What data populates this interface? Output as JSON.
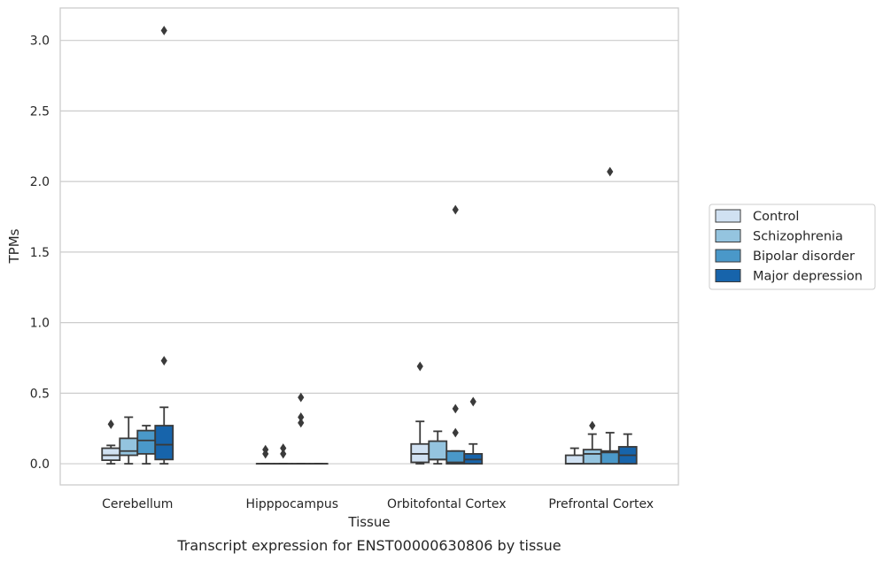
{
  "chart_data": {
    "type": "box",
    "xlabel": "Tissue",
    "ylabel": "TPMs",
    "caption": "Transcript expression for ENST00000630806 by tissue",
    "ylim": [
      -0.15,
      3.23
    ],
    "yticks": [
      0.0,
      0.5,
      1.0,
      1.5,
      2.0,
      2.5,
      3.0
    ],
    "ytick_labels": [
      "0.0",
      "0.5",
      "1.0",
      "1.5",
      "2.0",
      "2.5",
      "3.0"
    ],
    "grid": "horizontal",
    "legend_position": "right",
    "categories": [
      "Cerebellum",
      "Hipppocampus",
      "Orbitofontal Cortex",
      "Prefrontal Cortex"
    ],
    "series": [
      {
        "name": "Control",
        "color": "#d0e1f2",
        "boxes": [
          {
            "whislo": 0.0,
            "q1": 0.025,
            "med": 0.06,
            "q3": 0.11,
            "whishi": 0.13,
            "fliers": [
              0.28
            ]
          },
          {
            "whislo": 0.0,
            "q1": 0.0,
            "med": 0.0,
            "q3": 0.0,
            "whishi": 0.0,
            "fliers": [
              0.07,
              0.1
            ]
          },
          {
            "whislo": 0.0,
            "q1": 0.01,
            "med": 0.07,
            "q3": 0.14,
            "whishi": 0.3,
            "fliers": [
              0.69
            ]
          },
          {
            "whislo": 0.0,
            "q1": 0.0,
            "med": 0.0,
            "q3": 0.06,
            "whishi": 0.11,
            "fliers": []
          }
        ]
      },
      {
        "name": "Schizophrenia",
        "color": "#94c4df",
        "boxes": [
          {
            "whislo": 0.0,
            "q1": 0.06,
            "med": 0.09,
            "q3": 0.18,
            "whishi": 0.33,
            "fliers": []
          },
          {
            "whislo": 0.0,
            "q1": 0.0,
            "med": 0.0,
            "q3": 0.0,
            "whishi": 0.0,
            "fliers": [
              0.07,
              0.11
            ]
          },
          {
            "whislo": 0.0,
            "q1": 0.03,
            "med": 0.03,
            "q3": 0.16,
            "whishi": 0.23,
            "fliers": []
          },
          {
            "whislo": 0.0,
            "q1": 0.0,
            "med": 0.07,
            "q3": 0.1,
            "whishi": 0.21,
            "fliers": [
              0.27
            ]
          }
        ]
      },
      {
        "name": "Bipolar disorder",
        "color": "#4a98c9",
        "boxes": [
          {
            "whislo": 0.0,
            "q1": 0.07,
            "med": 0.165,
            "q3": 0.235,
            "whishi": 0.27,
            "fliers": []
          },
          {
            "whislo": 0.0,
            "q1": 0.0,
            "med": 0.0,
            "q3": 0.0,
            "whishi": 0.0,
            "fliers": [
              0.29,
              0.33,
              0.47
            ]
          },
          {
            "whislo": 0.0,
            "q1": 0.0,
            "med": 0.01,
            "q3": 0.09,
            "whishi": 0.09,
            "fliers": [
              0.22,
              0.39,
              1.8
            ]
          },
          {
            "whislo": 0.0,
            "q1": 0.0,
            "med": 0.08,
            "q3": 0.09,
            "whishi": 0.22,
            "fliers": [
              2.07
            ]
          }
        ]
      },
      {
        "name": "Major depression",
        "color": "#1764ab",
        "boxes": [
          {
            "whislo": 0.0,
            "q1": 0.03,
            "med": 0.135,
            "q3": 0.27,
            "whishi": 0.4,
            "fliers": [
              0.73,
              3.07
            ]
          },
          {
            "whislo": 0.0,
            "q1": 0.0,
            "med": 0.0,
            "q3": 0.0,
            "whishi": 0.0,
            "fliers": []
          },
          {
            "whislo": 0.0,
            "q1": 0.0,
            "med": 0.03,
            "q3": 0.07,
            "whishi": 0.14,
            "fliers": [
              0.44
            ]
          },
          {
            "whislo": 0.0,
            "q1": 0.0,
            "med": 0.06,
            "q3": 0.12,
            "whishi": 0.21,
            "fliers": []
          }
        ]
      }
    ]
  },
  "colors": {
    "edge": "#3a3a3a",
    "grid": "#cccccc",
    "frame": "#cccccc"
  }
}
